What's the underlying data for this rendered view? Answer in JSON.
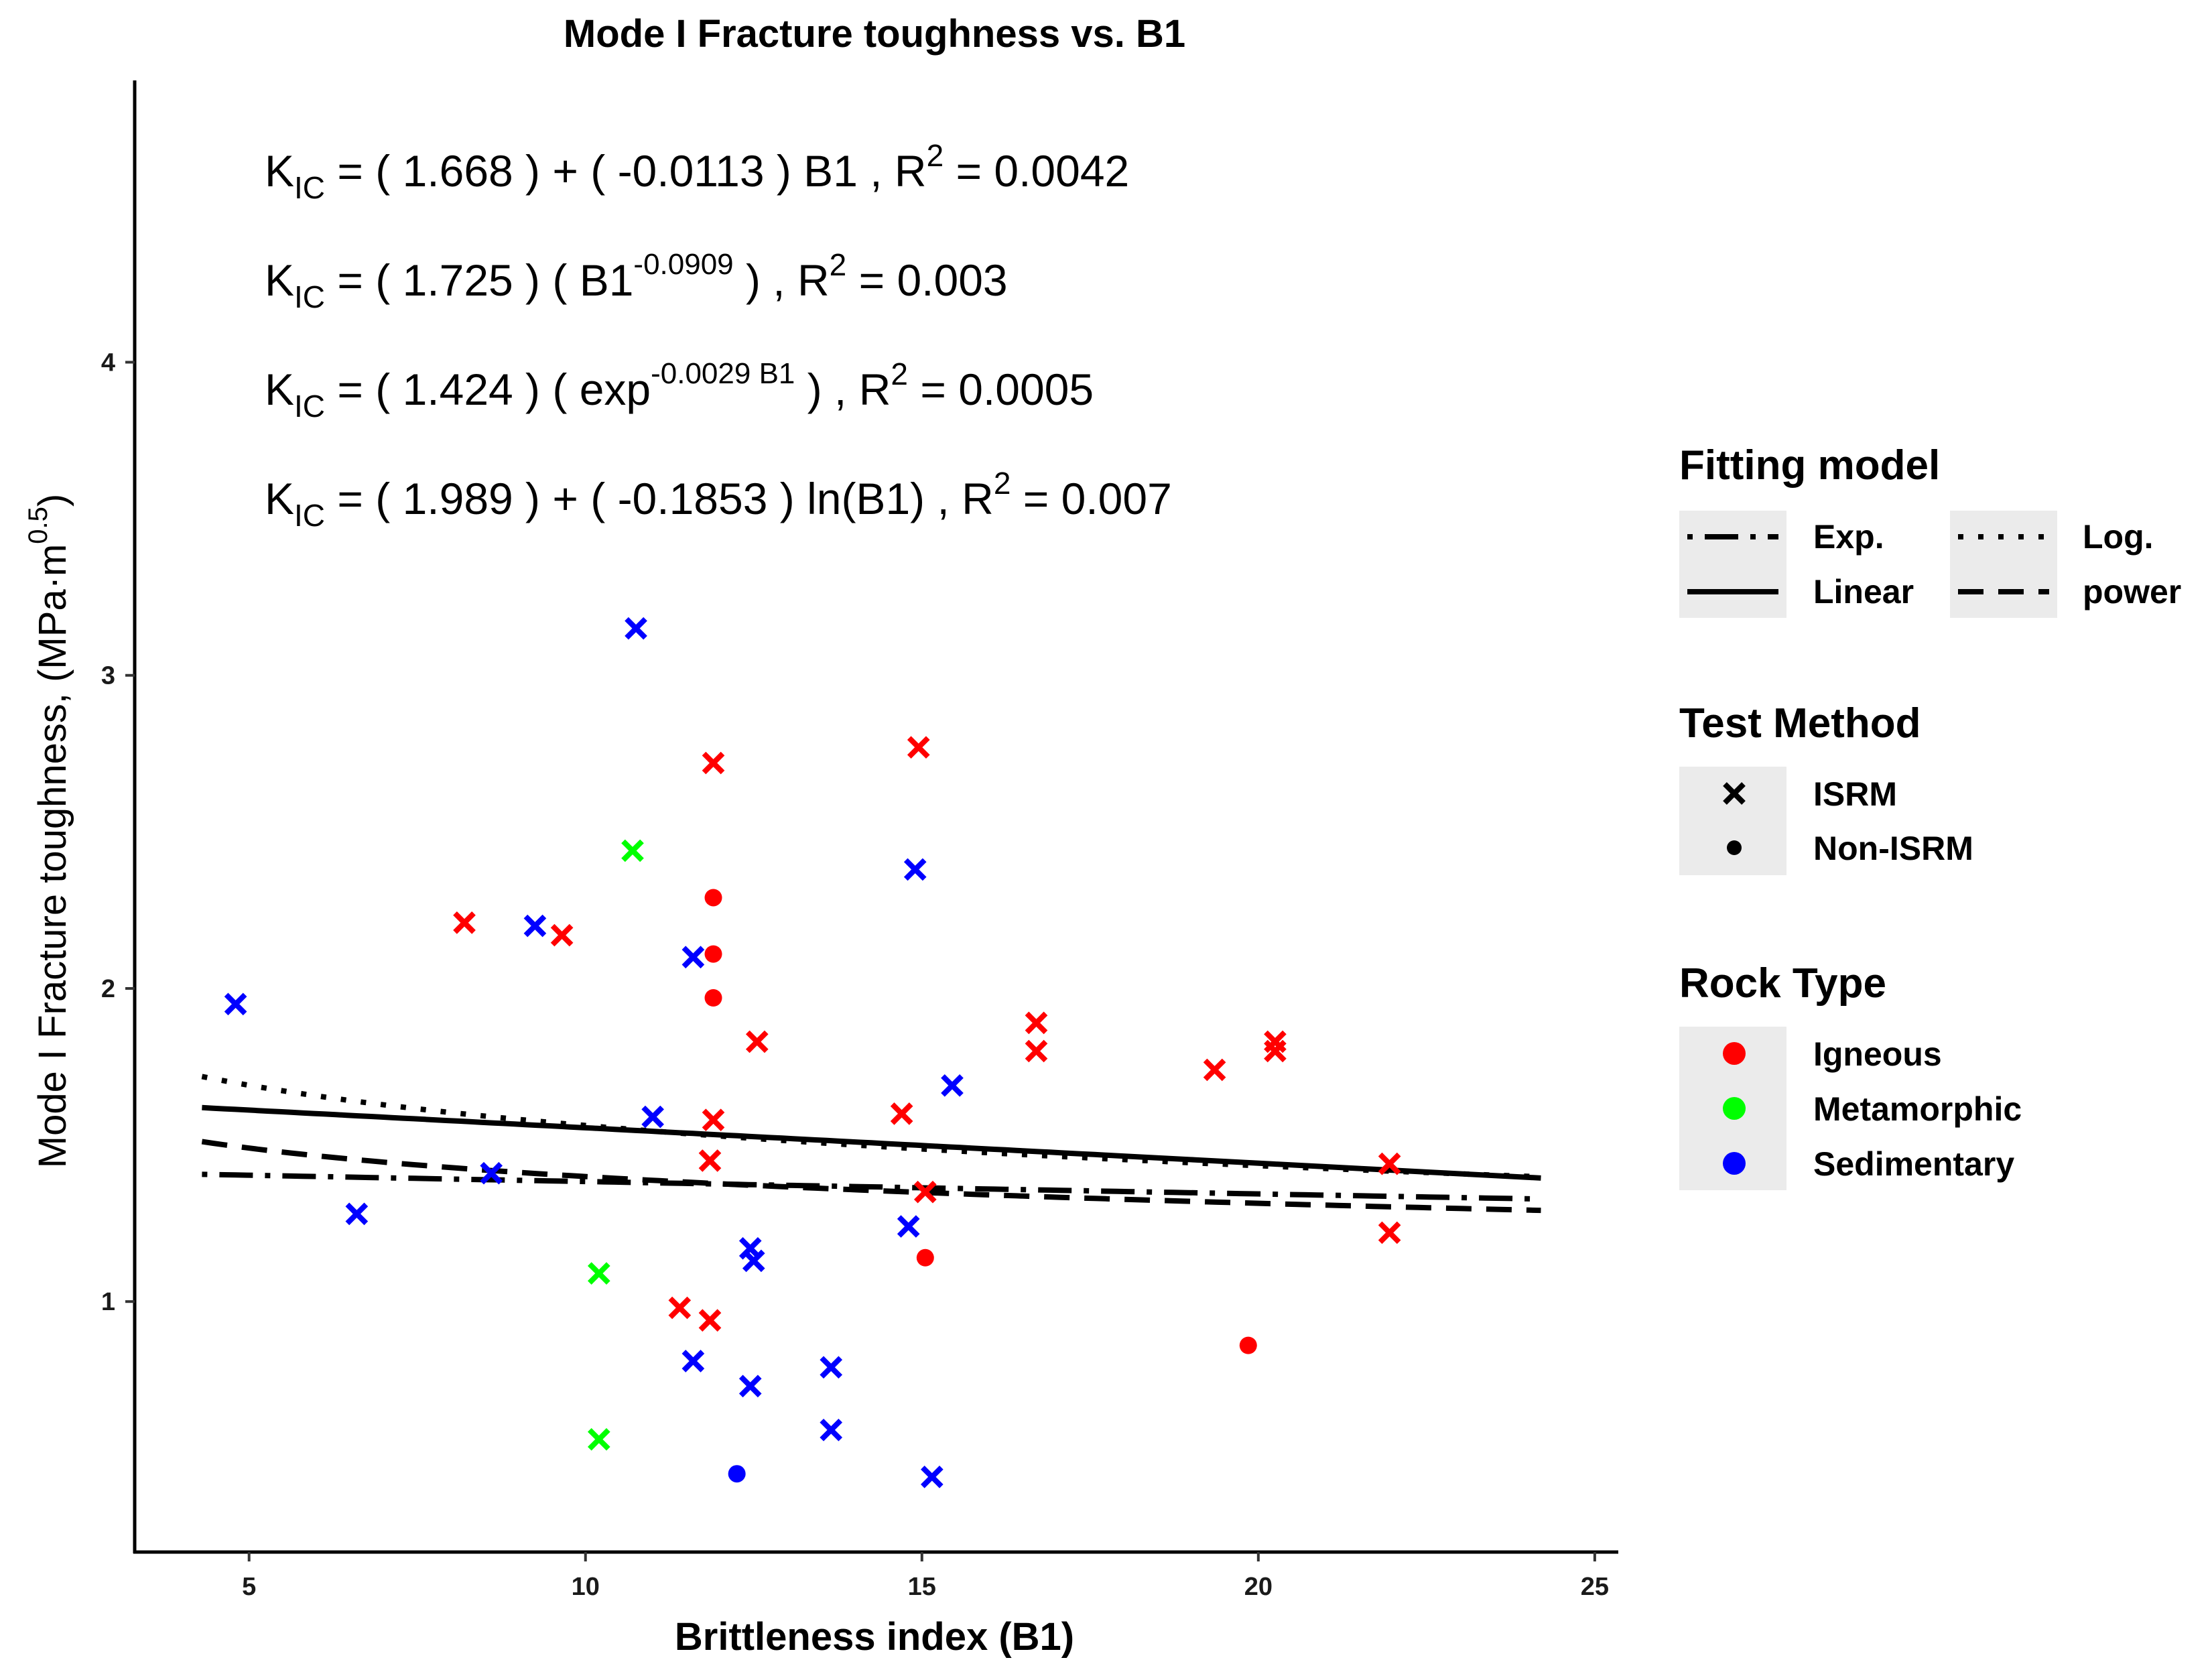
{
  "chart_data": {
    "type": "scatter",
    "title": "Mode I Fracture toughness vs. B1",
    "xlabel": "Brittleness index (B1)",
    "ylabel": {
      "main": "Mode I Fracture toughness, (MPa·m",
      "sup": "0.5",
      "close": ")"
    },
    "xlim": [
      3.3,
      25.3
    ],
    "ylim": [
      0.2,
      4.9
    ],
    "x_ticks": [
      5,
      10,
      15,
      20,
      25
    ],
    "y_ticks": [
      1,
      2,
      3,
      4
    ],
    "grid": false,
    "equations": [
      {
        "lhs": "K",
        "sub": "IC",
        "rhs": " =  ( 1.668 ) +  ( -0.0113 ) B1 ,  R",
        "r2sup": "2",
        "r2": " = 0.0042"
      },
      {
        "lhs": "K",
        "sub": "IC",
        "rhs": " =  ( 1.725 ) ( B1",
        "expsup": "-0.0909",
        "rhs2": " ) ,  R",
        "r2sup": "2",
        "r2": " = 0.003"
      },
      {
        "lhs": "K",
        "sub": "IC",
        "rhs": " =  ( 1.424 ) ( exp",
        "expsup": "-0.0029 B1",
        "rhs2": " ) ,  R",
        "r2sup": "2",
        "r2": " = 0.0005"
      },
      {
        "lhs": "K",
        "sub": "IC",
        "rhs": " =  ( 1.989 ) +  ( -0.1853 ) ln(B1) ,  R",
        "r2sup": "2",
        "r2": " = 0.007"
      }
    ],
    "fits": [
      {
        "name": "Linear",
        "model": "linear",
        "a": 1.668,
        "b": -0.0113,
        "x_range": [
          4.3,
          24.2
        ]
      },
      {
        "name": "power",
        "model": "power",
        "a": 1.725,
        "b": -0.0909,
        "x_range": [
          4.3,
          24.2
        ]
      },
      {
        "name": "Exp.",
        "model": "exp",
        "a": 1.424,
        "b": -0.0029,
        "x_range": [
          4.3,
          24.2
        ]
      },
      {
        "name": "Log.",
        "model": "log",
        "a": 1.989,
        "b": -0.1853,
        "x_range": [
          4.3,
          24.2
        ]
      }
    ],
    "points": [
      {
        "x": 4.8,
        "y": 1.95,
        "rock": "Sedimentary",
        "method": "ISRM"
      },
      {
        "x": 6.6,
        "y": 1.28,
        "rock": "Sedimentary",
        "method": "ISRM"
      },
      {
        "x": 8.2,
        "y": 2.21,
        "rock": "Igneous",
        "method": "ISRM"
      },
      {
        "x": 8.6,
        "y": 1.41,
        "rock": "Sedimentary",
        "method": "ISRM"
      },
      {
        "x": 9.25,
        "y": 2.2,
        "rock": "Sedimentary",
        "method": "ISRM"
      },
      {
        "x": 9.65,
        "y": 2.17,
        "rock": "Igneous",
        "method": "ISRM"
      },
      {
        "x": 10.2,
        "y": 1.09,
        "rock": "Metamorphic",
        "method": "ISRM"
      },
      {
        "x": 10.2,
        "y": 0.56,
        "rock": "Metamorphic",
        "method": "ISRM"
      },
      {
        "x": 10.7,
        "y": 2.44,
        "rock": "Metamorphic",
        "method": "ISRM"
      },
      {
        "x": 10.75,
        "y": 3.15,
        "rock": "Sedimentary",
        "method": "ISRM"
      },
      {
        "x": 11.0,
        "y": 1.59,
        "rock": "Sedimentary",
        "method": "ISRM"
      },
      {
        "x": 11.4,
        "y": 0.98,
        "rock": "Igneous",
        "method": "ISRM"
      },
      {
        "x": 11.6,
        "y": 2.1,
        "rock": "Sedimentary",
        "method": "ISRM"
      },
      {
        "x": 11.6,
        "y": 0.81,
        "rock": "Sedimentary",
        "method": "ISRM"
      },
      {
        "x": 11.9,
        "y": 2.72,
        "rock": "Igneous",
        "method": "ISRM"
      },
      {
        "x": 11.9,
        "y": 2.29,
        "rock": "Igneous",
        "method": "Non-ISRM"
      },
      {
        "x": 11.9,
        "y": 2.11,
        "rock": "Igneous",
        "method": "Non-ISRM"
      },
      {
        "x": 11.9,
        "y": 1.97,
        "rock": "Igneous",
        "method": "Non-ISRM"
      },
      {
        "x": 11.9,
        "y": 1.58,
        "rock": "Igneous",
        "method": "ISRM"
      },
      {
        "x": 11.85,
        "y": 1.45,
        "rock": "Igneous",
        "method": "ISRM"
      },
      {
        "x": 11.85,
        "y": 0.94,
        "rock": "Igneous",
        "method": "ISRM"
      },
      {
        "x": 12.25,
        "y": 0.45,
        "rock": "Sedimentary",
        "method": "Non-ISRM"
      },
      {
        "x": 12.45,
        "y": 1.17,
        "rock": "Sedimentary",
        "method": "ISRM"
      },
      {
        "x": 12.5,
        "y": 1.13,
        "rock": "Sedimentary",
        "method": "ISRM"
      },
      {
        "x": 12.45,
        "y": 0.73,
        "rock": "Sedimentary",
        "method": "ISRM"
      },
      {
        "x": 12.55,
        "y": 1.83,
        "rock": "Igneous",
        "method": "ISRM"
      },
      {
        "x": 13.65,
        "y": 0.79,
        "rock": "Sedimentary",
        "method": "ISRM"
      },
      {
        "x": 13.65,
        "y": 0.59,
        "rock": "Sedimentary",
        "method": "ISRM"
      },
      {
        "x": 14.7,
        "y": 1.6,
        "rock": "Igneous",
        "method": "ISRM"
      },
      {
        "x": 14.8,
        "y": 1.24,
        "rock": "Sedimentary",
        "method": "ISRM"
      },
      {
        "x": 14.95,
        "y": 2.77,
        "rock": "Igneous",
        "method": "ISRM"
      },
      {
        "x": 14.9,
        "y": 2.38,
        "rock": "Sedimentary",
        "method": "ISRM"
      },
      {
        "x": 15.05,
        "y": 1.14,
        "rock": "Igneous",
        "method": "Non-ISRM"
      },
      {
        "x": 15.05,
        "y": 1.35,
        "rock": "Igneous",
        "method": "ISRM"
      },
      {
        "x": 15.15,
        "y": 0.44,
        "rock": "Sedimentary",
        "method": "ISRM"
      },
      {
        "x": 15.45,
        "y": 1.69,
        "rock": "Sedimentary",
        "method": "ISRM"
      },
      {
        "x": 16.7,
        "y": 1.89,
        "rock": "Igneous",
        "method": "ISRM"
      },
      {
        "x": 16.7,
        "y": 1.8,
        "rock": "Igneous",
        "method": "ISRM"
      },
      {
        "x": 19.35,
        "y": 1.74,
        "rock": "Igneous",
        "method": "ISRM"
      },
      {
        "x": 19.85,
        "y": 0.86,
        "rock": "Igneous",
        "method": "Non-ISRM"
      },
      {
        "x": 20.25,
        "y": 1.83,
        "rock": "Igneous",
        "method": "ISRM"
      },
      {
        "x": 20.25,
        "y": 1.8,
        "rock": "Igneous",
        "method": "ISRM"
      },
      {
        "x": 21.95,
        "y": 1.44,
        "rock": "Igneous",
        "method": "ISRM"
      },
      {
        "x": 21.95,
        "y": 1.22,
        "rock": "Igneous",
        "method": "ISRM"
      }
    ],
    "legend": {
      "placement": "right",
      "fitting": {
        "title": "Fitting model",
        "items": [
          {
            "label": "Exp.",
            "dash": "dotdash"
          },
          {
            "label": "Log.",
            "dash": "dotted"
          },
          {
            "label": "Linear",
            "dash": "solid"
          },
          {
            "label": "power",
            "dash": "dashed"
          }
        ]
      },
      "method": {
        "title": "Test Method",
        "items": [
          {
            "label": "ISRM",
            "shape": "cross"
          },
          {
            "label": "Non-ISRM",
            "shape": "dot"
          }
        ]
      },
      "rock": {
        "title": "Rock Type",
        "items": [
          {
            "label": "Igneous",
            "color": "#ff0000"
          },
          {
            "label": "Metamorphic",
            "color": "#00ff00"
          },
          {
            "label": "Sedimentary",
            "color": "#0000ff"
          }
        ]
      }
    }
  }
}
